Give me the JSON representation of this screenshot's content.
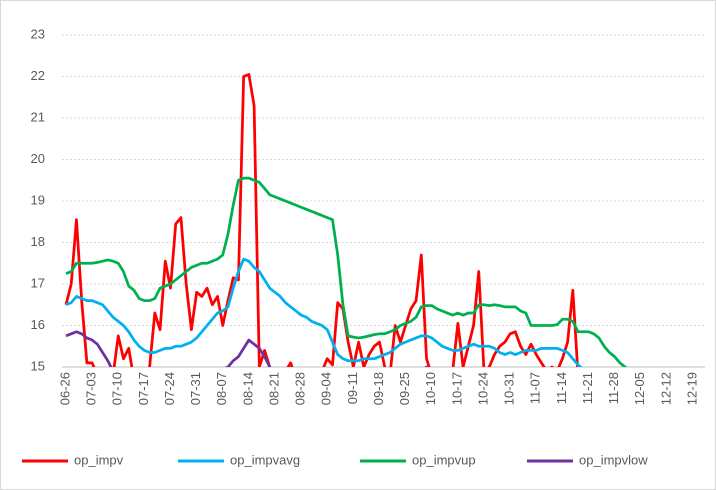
{
  "chart_data": {
    "type": "line",
    "categories": [
      "06-26",
      null,
      null,
      null,
      null,
      "07-03",
      null,
      null,
      null,
      null,
      "07-10",
      null,
      null,
      null,
      null,
      "07-17",
      null,
      null,
      null,
      null,
      "07-24",
      null,
      null,
      null,
      null,
      "07-31",
      null,
      null,
      null,
      null,
      "08-07",
      null,
      null,
      null,
      null,
      "08-14",
      null,
      null,
      null,
      null,
      "08-21",
      null,
      null,
      null,
      null,
      "08-28",
      null,
      null,
      null,
      null,
      "09-04",
      null,
      null,
      null,
      null,
      "09-11",
      null,
      null,
      null,
      null,
      "09-18",
      null,
      null,
      null,
      null,
      "09-25",
      null,
      null,
      null,
      null,
      "10-10",
      null,
      null,
      null,
      null,
      "10-17",
      null,
      null,
      null,
      null,
      "10-24",
      null,
      null,
      null,
      null,
      "10-31",
      null,
      null,
      null,
      null,
      "11-07",
      null,
      null,
      null,
      null,
      "11-14",
      null,
      null,
      null,
      null,
      "11-21",
      null,
      null,
      null,
      null,
      "11-28",
      null,
      null,
      null,
      null,
      "12-05",
      null,
      null,
      null,
      null,
      "12-12",
      null,
      null,
      null,
      null,
      "12-19"
    ],
    "series": [
      {
        "name": "op_impv",
        "color": "#ff0000",
        "values": [
          16.5,
          17.0,
          18.55,
          16.6,
          15.1,
          15.1,
          14.8,
          14.5,
          14.6,
          14.8,
          15.75,
          15.2,
          15.45,
          14.7,
          14.5,
          14.6,
          15.0,
          16.3,
          15.9,
          17.55,
          16.9,
          18.45,
          18.6,
          17.0,
          15.9,
          16.8,
          16.7,
          16.9,
          16.5,
          16.7,
          16.0,
          16.6,
          17.15,
          17.1,
          22.0,
          22.05,
          21.3,
          15.0,
          15.4,
          15.0,
          14.8,
          14.6,
          14.9,
          15.1,
          14.7,
          14.5,
          14.5,
          14.6,
          14.7,
          14.9,
          15.2,
          15.05,
          16.55,
          16.4,
          15.6,
          15.0,
          15.6,
          15.0,
          15.3,
          15.5,
          15.6,
          15.0,
          14.8,
          16.0,
          15.6,
          16.0,
          16.4,
          16.6,
          17.7,
          15.2,
          14.8,
          14.5,
          14.5,
          14.8,
          14.9,
          16.05,
          15.0,
          15.5,
          16.0,
          17.3,
          14.9,
          15.0,
          15.3,
          15.5,
          15.6,
          15.8,
          15.85,
          15.5,
          15.3,
          15.55,
          15.3,
          15.1,
          14.9,
          15.0,
          14.9,
          15.2,
          15.6,
          16.85,
          14.8,
          14.6,
          14.5,
          14.5,
          14.6,
          14.5,
          14.5,
          14.6,
          14.5,
          14.5,
          14.6,
          14.5,
          null,
          null,
          null,
          null,
          null,
          null,
          null,
          null,
          null,
          null,
          null
        ]
      },
      {
        "name": "op_impvavg",
        "color": "#00b0f0",
        "values": [
          16.5,
          16.55,
          16.7,
          16.65,
          16.6,
          16.6,
          16.55,
          16.5,
          16.35,
          16.2,
          16.1,
          16.0,
          15.85,
          15.65,
          15.5,
          15.4,
          15.35,
          15.35,
          15.4,
          15.45,
          15.45,
          15.5,
          15.5,
          15.55,
          15.6,
          15.7,
          15.85,
          16.0,
          16.15,
          16.3,
          16.35,
          16.45,
          16.9,
          17.3,
          17.6,
          17.55,
          17.4,
          17.3,
          17.1,
          16.9,
          16.8,
          16.7,
          16.55,
          16.45,
          16.35,
          16.25,
          16.2,
          16.1,
          16.05,
          16.0,
          15.9,
          15.6,
          15.3,
          15.2,
          15.15,
          15.15,
          15.15,
          15.2,
          15.2,
          15.2,
          15.25,
          15.3,
          15.35,
          15.45,
          15.55,
          15.6,
          15.65,
          15.7,
          15.75,
          15.75,
          15.7,
          15.6,
          15.5,
          15.45,
          15.4,
          15.4,
          15.45,
          15.5,
          15.55,
          15.5,
          15.5,
          15.5,
          15.45,
          15.35,
          15.3,
          15.35,
          15.3,
          15.35,
          15.4,
          15.4,
          15.4,
          15.45,
          15.45,
          15.45,
          15.45,
          15.4,
          15.35,
          15.2,
          15.05,
          14.95,
          14.85,
          14.8,
          14.8,
          14.75,
          14.7,
          14.7,
          14.65,
          14.6,
          14.6,
          14.6,
          null,
          null,
          null,
          null,
          null,
          null,
          null,
          null,
          null,
          null,
          null
        ]
      },
      {
        "name": "op_impvup",
        "color": "#00b050",
        "values": [
          17.25,
          17.3,
          17.5,
          17.5,
          17.5,
          17.5,
          17.52,
          17.55,
          17.58,
          17.55,
          17.5,
          17.3,
          16.95,
          16.85,
          16.65,
          16.6,
          16.6,
          16.65,
          16.9,
          16.95,
          17.0,
          17.1,
          17.2,
          17.3,
          17.4,
          17.45,
          17.5,
          17.5,
          17.55,
          17.6,
          17.7,
          18.2,
          18.9,
          19.5,
          19.55,
          19.55,
          19.5,
          19.45,
          19.3,
          19.15,
          19.1,
          19.05,
          19.0,
          18.95,
          18.9,
          18.85,
          18.8,
          18.75,
          18.7,
          18.65,
          18.6,
          18.55,
          17.7,
          16.5,
          15.75,
          15.72,
          15.7,
          15.72,
          15.75,
          15.78,
          15.8,
          15.8,
          15.85,
          15.9,
          16.0,
          16.05,
          16.1,
          16.2,
          16.45,
          16.48,
          16.48,
          16.4,
          16.35,
          16.3,
          16.25,
          16.3,
          16.25,
          16.3,
          16.3,
          16.5,
          16.5,
          16.48,
          16.5,
          16.48,
          16.45,
          16.45,
          16.45,
          16.35,
          16.3,
          16.0,
          16.0,
          16.0,
          16.0,
          16.0,
          16.02,
          16.15,
          16.15,
          16.1,
          15.85,
          15.85,
          15.85,
          15.8,
          15.7,
          15.5,
          15.35,
          15.25,
          15.1,
          15.0,
          14.9,
          14.8,
          null,
          null,
          null,
          null,
          null,
          null,
          null,
          null,
          null,
          null,
          null
        ]
      },
      {
        "name": "op_impvlow",
        "color": "#7030a0",
        "values": [
          15.75,
          15.8,
          15.85,
          15.8,
          15.7,
          15.65,
          15.55,
          15.35,
          15.15,
          14.9,
          14.7,
          14.6,
          14.5,
          14.5,
          14.5,
          14.5,
          14.5,
          14.5,
          14.5,
          14.5,
          14.5,
          14.5,
          14.5,
          14.5,
          14.5,
          14.5,
          14.6,
          14.7,
          14.8,
          14.9,
          14.95,
          15.0,
          15.15,
          15.25,
          15.45,
          15.65,
          15.55,
          15.45,
          15.25,
          15.0,
          14.7,
          14.5,
          14.5,
          14.5,
          14.5,
          14.5,
          14.5,
          14.5,
          14.5,
          14.5,
          14.5,
          14.5,
          14.5,
          14.5,
          14.5,
          14.5,
          14.5,
          14.5,
          14.5,
          14.5,
          14.5,
          14.5,
          14.5,
          14.5,
          14.5,
          14.6,
          14.7,
          14.8,
          14.9,
          15.0,
          14.9,
          14.7,
          14.5,
          14.5,
          14.5,
          14.5,
          14.5,
          14.5,
          14.5,
          14.5,
          14.5,
          14.5,
          14.5,
          14.5,
          14.5,
          14.5,
          14.5,
          14.5,
          14.5,
          14.5,
          14.5,
          14.5,
          14.5,
          14.5,
          14.5,
          14.5,
          14.5,
          14.5,
          14.5,
          14.5,
          14.5,
          14.5,
          14.5,
          14.5,
          14.5,
          14.5,
          14.5,
          14.5,
          14.5,
          14.5,
          null,
          null,
          null,
          null,
          null,
          null,
          null,
          null,
          null,
          null,
          null
        ]
      }
    ],
    "ylim": [
      15,
      23
    ],
    "yticks": [
      15,
      16,
      17,
      18,
      19,
      20,
      21,
      22,
      23
    ],
    "grid": true,
    "legend": "bottom"
  }
}
